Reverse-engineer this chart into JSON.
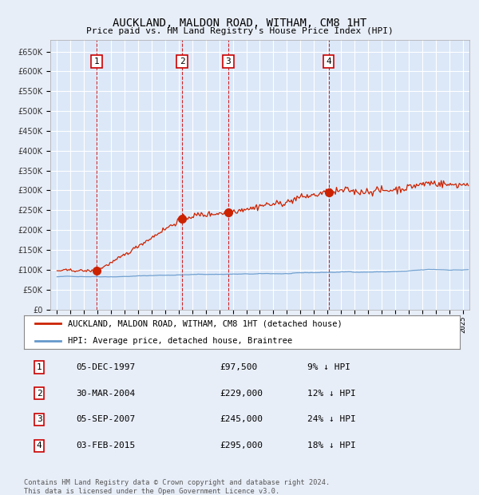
{
  "title": "AUCKLAND, MALDON ROAD, WITHAM, CM8 1HT",
  "subtitle": "Price paid vs. HM Land Registry's House Price Index (HPI)",
  "background_color": "#e8eef8",
  "plot_bg_color": "#dce8f8",
  "grid_color": "#ffffff",
  "sale_dates_num": [
    1997.92,
    2004.25,
    2007.67,
    2015.08
  ],
  "sale_prices": [
    97500,
    229000,
    245000,
    295000
  ],
  "sale_labels": [
    "1",
    "2",
    "3",
    "4"
  ],
  "sale_info": [
    [
      "1",
      "05-DEC-1997",
      "£97,500",
      "9% ↓ HPI"
    ],
    [
      "2",
      "30-MAR-2004",
      "£229,000",
      "12% ↓ HPI"
    ],
    [
      "3",
      "05-SEP-2007",
      "£245,000",
      "24% ↓ HPI"
    ],
    [
      "4",
      "03-FEB-2015",
      "£295,000",
      "18% ↓ HPI"
    ]
  ],
  "legend_line1": "AUCKLAND, MALDON ROAD, WITHAM, CM8 1HT (detached house)",
  "legend_line2": "HPI: Average price, detached house, Braintree",
  "footnote": "Contains HM Land Registry data © Crown copyright and database right 2024.\nThis data is licensed under the Open Government Licence v3.0.",
  "hpi_color": "#6699cc",
  "price_color": "#cc2200",
  "vline_color": "#cc0000",
  "ylim": [
    0,
    680000
  ],
  "yticks": [
    0,
    50000,
    100000,
    150000,
    200000,
    250000,
    300000,
    350000,
    400000,
    450000,
    500000,
    550000,
    600000,
    650000
  ],
  "xlim_start": 1994.5,
  "xlim_end": 2025.5
}
